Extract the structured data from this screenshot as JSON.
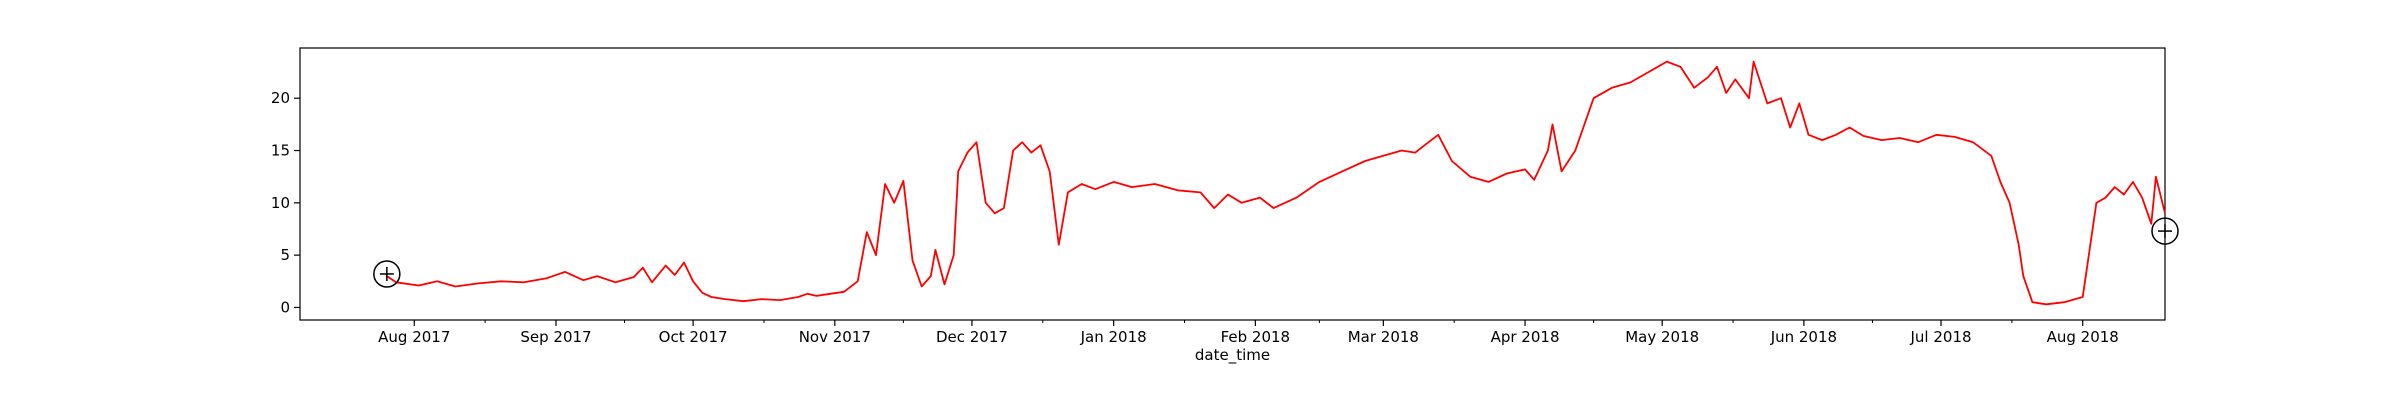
{
  "chart_data": {
    "type": "line",
    "title": "",
    "xlabel": "date_time",
    "ylabel": "",
    "x_tick_labels": [
      "Aug 2017",
      "Sep 2017",
      "Oct 2017",
      "Nov 2017",
      "Dec 2017",
      "Jan 2018",
      "Feb 2018",
      "Mar 2018",
      "Apr 2018",
      "May 2018",
      "Jun 2018",
      "Jul 2018",
      "Aug 2018"
    ],
    "x_ticks": [
      "2017-08-01",
      "2017-09-01",
      "2017-10-01",
      "2017-11-01",
      "2017-12-01",
      "2018-01-01",
      "2018-02-01",
      "2018-03-01",
      "2018-04-01",
      "2018-05-01",
      "2018-06-01",
      "2018-07-01",
      "2018-08-01"
    ],
    "y_ticks": [
      0,
      5,
      10,
      15,
      20
    ],
    "xlim": [
      "2017-07-07",
      "2018-08-19"
    ],
    "ylim": [
      -1.2,
      24.8
    ],
    "grid": false,
    "series": [
      {
        "color": "#ff0000",
        "points": [
          [
            "2017-07-26",
            3.0
          ],
          [
            "2017-07-28",
            2.4
          ],
          [
            "2017-08-02",
            2.1
          ],
          [
            "2017-08-06",
            2.5
          ],
          [
            "2017-08-10",
            2.0
          ],
          [
            "2017-08-15",
            2.3
          ],
          [
            "2017-08-20",
            2.5
          ],
          [
            "2017-08-25",
            2.4
          ],
          [
            "2017-08-30",
            2.8
          ],
          [
            "2017-09-03",
            3.4
          ],
          [
            "2017-09-07",
            2.6
          ],
          [
            "2017-09-10",
            3.0
          ],
          [
            "2017-09-14",
            2.4
          ],
          [
            "2017-09-18",
            2.9
          ],
          [
            "2017-09-20",
            3.8
          ],
          [
            "2017-09-22",
            2.4
          ],
          [
            "2017-09-25",
            4.0
          ],
          [
            "2017-09-27",
            3.1
          ],
          [
            "2017-09-29",
            4.3
          ],
          [
            "2017-10-01",
            2.5
          ],
          [
            "2017-10-03",
            1.4
          ],
          [
            "2017-10-05",
            1.0
          ],
          [
            "2017-10-08",
            0.8
          ],
          [
            "2017-10-12",
            0.6
          ],
          [
            "2017-10-16",
            0.8
          ],
          [
            "2017-10-20",
            0.7
          ],
          [
            "2017-10-24",
            1.0
          ],
          [
            "2017-10-26",
            1.3
          ],
          [
            "2017-10-28",
            1.1
          ],
          [
            "2017-10-31",
            1.3
          ],
          [
            "2017-11-03",
            1.5
          ],
          [
            "2017-11-06",
            2.5
          ],
          [
            "2017-11-08",
            7.2
          ],
          [
            "2017-11-10",
            5.0
          ],
          [
            "2017-11-12",
            11.8
          ],
          [
            "2017-11-14",
            10.0
          ],
          [
            "2017-11-16",
            12.1
          ],
          [
            "2017-11-18",
            4.5
          ],
          [
            "2017-11-20",
            2.0
          ],
          [
            "2017-11-22",
            3.0
          ],
          [
            "2017-11-23",
            5.5
          ],
          [
            "2017-11-25",
            2.2
          ],
          [
            "2017-11-27",
            5.0
          ],
          [
            "2017-11-28",
            13.0
          ],
          [
            "2017-11-30",
            14.8
          ],
          [
            "2017-12-02",
            15.8
          ],
          [
            "2017-12-04",
            10.0
          ],
          [
            "2017-12-06",
            9.0
          ],
          [
            "2017-12-08",
            9.5
          ],
          [
            "2017-12-10",
            15.0
          ],
          [
            "2017-12-12",
            15.8
          ],
          [
            "2017-12-14",
            14.8
          ],
          [
            "2017-12-16",
            15.5
          ],
          [
            "2017-12-18",
            13.0
          ],
          [
            "2017-12-20",
            6.0
          ],
          [
            "2017-12-22",
            11.0
          ],
          [
            "2017-12-25",
            11.8
          ],
          [
            "2017-12-28",
            11.3
          ],
          [
            "2018-01-01",
            12.0
          ],
          [
            "2018-01-05",
            11.5
          ],
          [
            "2018-01-10",
            11.8
          ],
          [
            "2018-01-15",
            11.2
          ],
          [
            "2018-01-20",
            11.0
          ],
          [
            "2018-01-23",
            9.5
          ],
          [
            "2018-01-26",
            10.8
          ],
          [
            "2018-01-29",
            10.0
          ],
          [
            "2018-02-02",
            10.5
          ],
          [
            "2018-02-05",
            9.5
          ],
          [
            "2018-02-10",
            10.5
          ],
          [
            "2018-02-15",
            12.0
          ],
          [
            "2018-02-20",
            13.0
          ],
          [
            "2018-02-25",
            14.0
          ],
          [
            "2018-03-01",
            14.5
          ],
          [
            "2018-03-05",
            15.0
          ],
          [
            "2018-03-08",
            14.8
          ],
          [
            "2018-03-10",
            15.5
          ],
          [
            "2018-03-13",
            16.5
          ],
          [
            "2018-03-16",
            14.0
          ],
          [
            "2018-03-20",
            12.5
          ],
          [
            "2018-03-24",
            12.0
          ],
          [
            "2018-03-28",
            12.8
          ],
          [
            "2018-04-01",
            13.2
          ],
          [
            "2018-04-03",
            12.2
          ],
          [
            "2018-04-06",
            15.0
          ],
          [
            "2018-04-07",
            17.5
          ],
          [
            "2018-04-09",
            13.0
          ],
          [
            "2018-04-12",
            15.0
          ],
          [
            "2018-04-16",
            20.0
          ],
          [
            "2018-04-20",
            21.0
          ],
          [
            "2018-04-24",
            21.5
          ],
          [
            "2018-04-28",
            22.5
          ],
          [
            "2018-05-02",
            23.5
          ],
          [
            "2018-05-05",
            23.0
          ],
          [
            "2018-05-08",
            21.0
          ],
          [
            "2018-05-11",
            22.0
          ],
          [
            "2018-05-13",
            23.0
          ],
          [
            "2018-05-15",
            20.5
          ],
          [
            "2018-05-17",
            21.8
          ],
          [
            "2018-05-20",
            20.0
          ],
          [
            "2018-05-21",
            23.5
          ],
          [
            "2018-05-24",
            19.5
          ],
          [
            "2018-05-27",
            20.0
          ],
          [
            "2018-05-29",
            17.2
          ],
          [
            "2018-05-31",
            19.5
          ],
          [
            "2018-06-02",
            16.5
          ],
          [
            "2018-06-05",
            16.0
          ],
          [
            "2018-06-08",
            16.5
          ],
          [
            "2018-06-11",
            17.2
          ],
          [
            "2018-06-14",
            16.4
          ],
          [
            "2018-06-18",
            16.0
          ],
          [
            "2018-06-22",
            16.2
          ],
          [
            "2018-06-26",
            15.8
          ],
          [
            "2018-06-30",
            16.5
          ],
          [
            "2018-07-04",
            16.3
          ],
          [
            "2018-07-08",
            15.8
          ],
          [
            "2018-07-12",
            14.5
          ],
          [
            "2018-07-14",
            12.0
          ],
          [
            "2018-07-16",
            10.0
          ],
          [
            "2018-07-18",
            6.0
          ],
          [
            "2018-07-19",
            3.0
          ],
          [
            "2018-07-21",
            0.5
          ],
          [
            "2018-07-24",
            0.3
          ],
          [
            "2018-07-28",
            0.5
          ],
          [
            "2018-08-01",
            1.0
          ],
          [
            "2018-08-02",
            4.0
          ],
          [
            "2018-08-04",
            10.0
          ],
          [
            "2018-08-06",
            10.5
          ],
          [
            "2018-08-08",
            11.5
          ],
          [
            "2018-08-10",
            10.8
          ],
          [
            "2018-08-12",
            12.0
          ],
          [
            "2018-08-14",
            10.5
          ],
          [
            "2018-08-16",
            8.0
          ],
          [
            "2018-08-17",
            12.5
          ],
          [
            "2018-08-19",
            9.0
          ]
        ]
      }
    ],
    "annotations": [
      {
        "shape": "circle-plus",
        "x": "2017-07-26",
        "y": 3.2
      },
      {
        "shape": "circle-plus",
        "x": "2018-08-19",
        "y": 7.3
      }
    ]
  }
}
